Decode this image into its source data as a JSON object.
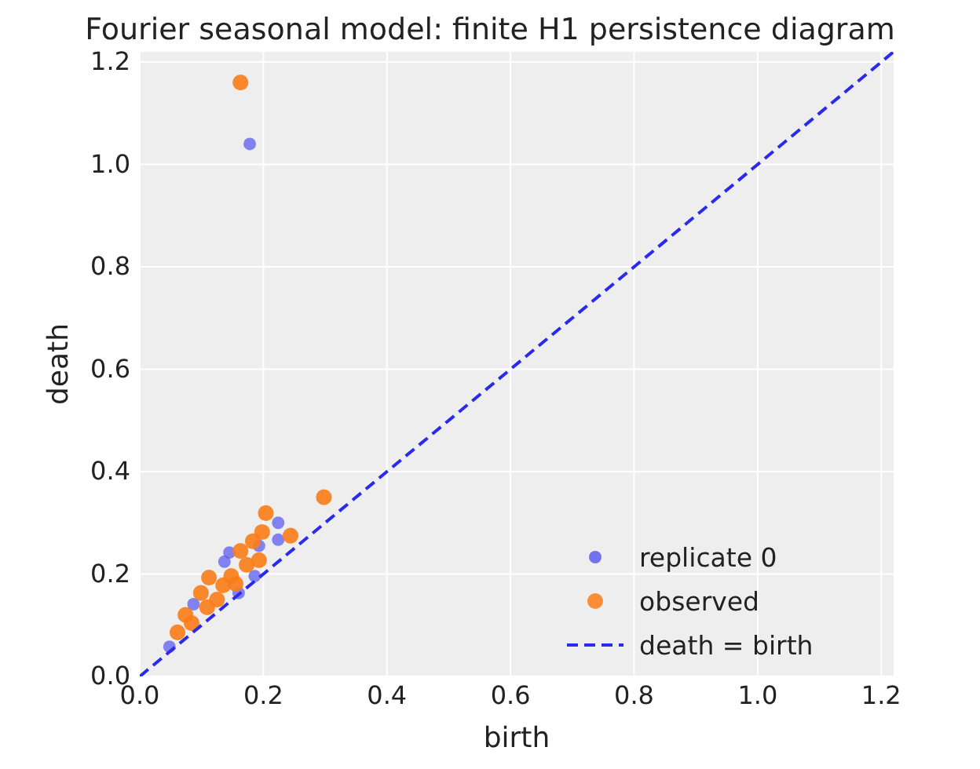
{
  "chart_data": {
    "type": "scatter",
    "title": "Fourier seasonal model: finite H1 persistence diagram",
    "xlabel": "birth",
    "ylabel": "death",
    "xlim": [
      0,
      1.22
    ],
    "ylim": [
      0,
      1.22
    ],
    "xticks": [
      {
        "value": 0,
        "label": "0.0"
      },
      {
        "value": 0.2,
        "label": "0.2"
      },
      {
        "value": 0.4,
        "label": "0.4"
      },
      {
        "value": 0.6,
        "label": "0.6"
      },
      {
        "value": 0.8,
        "label": "0.8"
      },
      {
        "value": 1,
        "label": "1.0"
      },
      {
        "value": 1.2,
        "label": "1.2"
      }
    ],
    "yticks": [
      {
        "value": 0,
        "label": "0.0"
      },
      {
        "value": 0.2,
        "label": "0.2"
      },
      {
        "value": 0.4,
        "label": "0.4"
      },
      {
        "value": 0.6,
        "label": "0.6"
      },
      {
        "value": 0.8,
        "label": "0.8"
      },
      {
        "value": 1,
        "label": "1.0"
      },
      {
        "value": 1.2,
        "label": "1.2"
      }
    ],
    "grid": true,
    "legend": "bottom right",
    "marker": "circle",
    "series": [
      {
        "name": "replicate 0",
        "color": "#5c5cf0",
        "x": [
          0.178,
          0.224,
          0.224,
          0.193,
          0.145,
          0.137,
          0.186,
          0.099,
          0.087,
          0.048,
          0.066,
          0.117,
          0.16
        ],
        "values": [
          1.04,
          0.3,
          0.267,
          0.255,
          0.242,
          0.224,
          0.196,
          null,
          0.141,
          0.058,
          null,
          null,
          0.163
        ]
      },
      {
        "name": "observed",
        "color": "#fa7c17",
        "x": [
          0.163,
          0.298,
          0.204,
          0.198,
          0.244,
          0.183,
          0.163,
          0.193,
          0.173,
          0.112,
          0.099,
          0.148,
          0.135,
          0.155,
          0.125,
          0.074,
          0.084,
          0.061,
          0.109
        ],
        "values": [
          1.16,
          0.35,
          0.319,
          0.282,
          0.275,
          0.264,
          0.245,
          0.227,
          0.218,
          0.193,
          0.163,
          0.196,
          0.178,
          0.181,
          0.15,
          0.12,
          0.104,
          0.086,
          0.135
        ]
      },
      {
        "name": "death = birth",
        "type": "line",
        "line_style": "dashed",
        "marker": "none",
        "color": "#2a2aee",
        "x": [
          0,
          1.22
        ],
        "values": [
          0,
          1.22
        ]
      }
    ]
  }
}
